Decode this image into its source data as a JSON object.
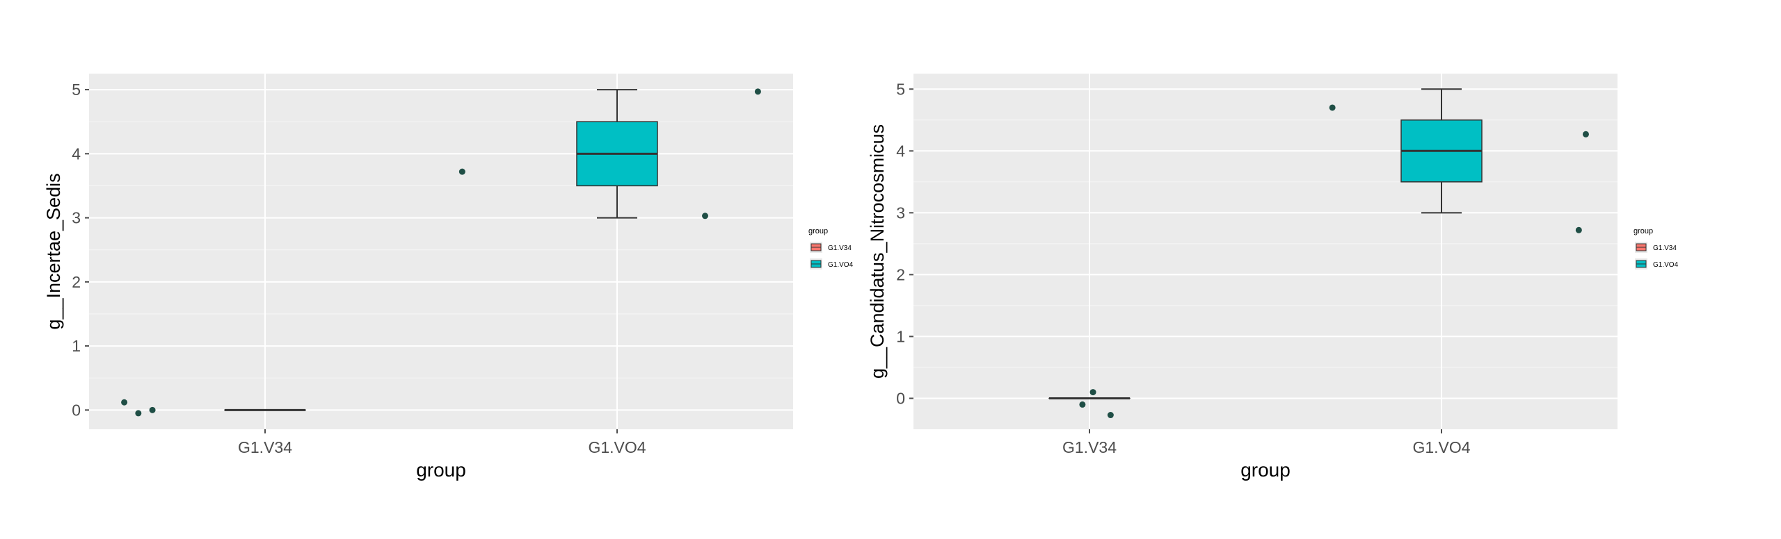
{
  "colors": {
    "panel": "#EBEBEB",
    "grid_major": "#FFFFFF",
    "grid_minor": "#F5F5F5",
    "axis_text": "#4D4D4D",
    "title_text": "#000000",
    "box_fill_teal": "#00BFC4",
    "box_fill_red": "#F8766D",
    "outline": "#333333",
    "point": "#1F4E45"
  },
  "chart_data": [
    {
      "type": "box",
      "xlabel": "group",
      "ylabel": "g__Incertae_Sedis",
      "categories": [
        "G1.V34",
        "G1.VO4"
      ],
      "yticks": [
        0,
        1,
        2,
        3,
        4,
        5
      ],
      "ylim": [
        -0.3,
        5.25
      ],
      "grid": true,
      "boxes": [
        {
          "category": "G1.V34",
          "min": 0,
          "q1": 0,
          "median": 0,
          "q3": 0,
          "max": 0
        },
        {
          "category": "G1.VO4",
          "min": 3,
          "q1": 3.5,
          "median": 4,
          "q3": 4.5,
          "max": 5
        }
      ],
      "points": [
        {
          "x": 0.6,
          "y": 0.12
        },
        {
          "x": 0.64,
          "y": -0.05
        },
        {
          "x": 0.68,
          "y": 0.0
        },
        {
          "x": 1.56,
          "y": 3.72
        },
        {
          "x": 2.25,
          "y": 3.03
        },
        {
          "x": 2.4,
          "y": 4.97
        }
      ],
      "legend": {
        "title": "group",
        "entries": [
          "G1.V34",
          "G1.VO4"
        ],
        "colors": [
          "#F8766D",
          "#00BFC4"
        ],
        "placement": "right"
      }
    },
    {
      "type": "box",
      "xlabel": "group",
      "ylabel": "g__Candidatus_Nitrocosmicus",
      "categories": [
        "G1.V34",
        "G1.VO4"
      ],
      "yticks": [
        0,
        1,
        2,
        3,
        4,
        5
      ],
      "ylim": [
        -0.5,
        5.25
      ],
      "grid": true,
      "boxes": [
        {
          "category": "G1.V34",
          "min": 0,
          "q1": 0,
          "median": 0,
          "q3": 0,
          "max": 0
        },
        {
          "category": "G1.VO4",
          "min": 3,
          "q1": 3.5,
          "median": 4,
          "q3": 4.5,
          "max": 5
        }
      ],
      "points": [
        {
          "x": 0.98,
          "y": -0.1
        },
        {
          "x": 1.01,
          "y": 0.1
        },
        {
          "x": 1.06,
          "y": -0.27
        },
        {
          "x": 1.69,
          "y": 4.7
        },
        {
          "x": 2.39,
          "y": 2.72
        },
        {
          "x": 2.41,
          "y": 4.27
        }
      ],
      "legend": {
        "title": "group",
        "entries": [
          "G1.V34",
          "G1.VO4"
        ],
        "colors": [
          "#F8766D",
          "#00BFC4"
        ],
        "placement": "right"
      }
    }
  ]
}
